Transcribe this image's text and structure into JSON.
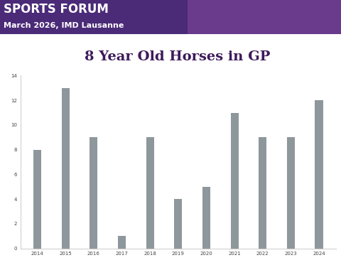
{
  "header": {
    "title": "SPORTS FORUM",
    "subtitle": "March 2026, IMD Lausanne"
  },
  "chart_data": {
    "type": "bar",
    "title": "8 Year Old Horses in GP",
    "categories": [
      "2014",
      "2015",
      "2016",
      "2017",
      "2018",
      "2019",
      "2020",
      "2021",
      "2022",
      "2023",
      "2024"
    ],
    "values": [
      8,
      13,
      9,
      1,
      9,
      4,
      5,
      11,
      9,
      9,
      12
    ],
    "color": "#8d979c",
    "ylim": [
      0,
      14
    ],
    "yticks": [
      0,
      2,
      4,
      6,
      8,
      10,
      12,
      14
    ],
    "grid": false
  }
}
